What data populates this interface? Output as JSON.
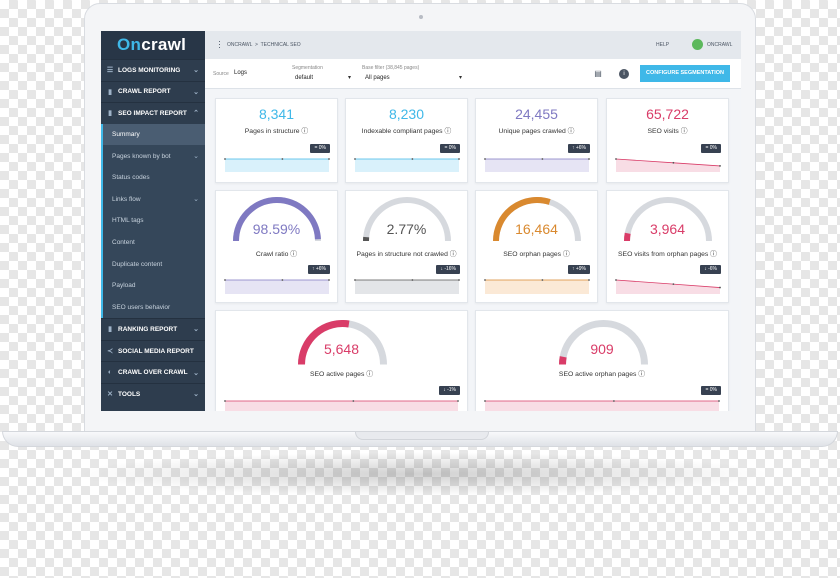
{
  "nav": {
    "logo_part1": "On",
    "logo_part2": "crawl",
    "sections": [
      {
        "label": "LOGS MONITORING",
        "icon": "list-icon"
      },
      {
        "label": "CRAWL REPORT",
        "icon": "bar-chart-icon"
      },
      {
        "label": "SEO IMPACT REPORT",
        "icon": "bar-chart-icon"
      },
      {
        "label": "RANKING REPORT",
        "icon": "bar-chart-icon"
      },
      {
        "label": "SOCIAL MEDIA REPORT",
        "icon": "share-icon"
      },
      {
        "label": "CRAWL OVER CRAWL",
        "icon": "compare-icon"
      },
      {
        "label": "TOOLS",
        "icon": "tools-icon"
      }
    ],
    "subitems": [
      "Summary",
      "Pages known by bot",
      "Status codes",
      "Links flow",
      "HTML tags",
      "Content",
      "Duplicate content",
      "Payload",
      "SEO users behavior"
    ]
  },
  "topbar": {
    "crumb1": "ONCRAWL",
    "crumb_sep": ">",
    "crumb2": "TECHNICAL SEO",
    "help": "HELP",
    "account": "ONCRAWL"
  },
  "filters": {
    "source_label": "Source",
    "source_value": "Logs",
    "segmentation_label": "Segmentation",
    "segmentation_value": "default",
    "base_filter_label": "Base filter (38,845 pages)",
    "base_filter_value": "All pages",
    "configure_button": "CONFIGURE SEGMENTATION"
  },
  "colors": {
    "blue": "#3fb8e8",
    "purple": "#7f79c2",
    "orange": "#d9892f",
    "pink": "#d93c68",
    "gray": "#555555"
  },
  "cards": [
    {
      "value": "8,341",
      "label": "Pages in structure",
      "badge": "= 0%",
      "trend": "flat",
      "color": "#3fb8e8",
      "fill": "#d9f1fb"
    },
    {
      "value": "8,230",
      "label": "Indexable compliant pages",
      "badge": "= 0%",
      "trend": "flat",
      "color": "#3fb8e8",
      "fill": "#d9f1fb"
    },
    {
      "value": "24,455",
      "label": "Unique pages crawled",
      "badge": "↑ +6%",
      "trend": "flat",
      "color": "#7f79c2",
      "fill": "#e6e4f4"
    },
    {
      "value": "65,722",
      "label": "SEO visits",
      "badge": "= 0%",
      "trend": "down",
      "color": "#d93c68",
      "fill": "#f8dde5"
    }
  ],
  "gauges": [
    {
      "value": "98.59%",
      "label": "Crawl ratio",
      "badge": "↑ +6%",
      "fraction": 0.986,
      "color": "#7f79c2",
      "fill": "#e6e4f4",
      "trend": "flat"
    },
    {
      "value": "2.77%",
      "label": "Pages in structure not crawled",
      "badge": "↓ -16%",
      "fraction": 0.028,
      "color": "#555555",
      "fill": "#e3e5e8",
      "trend": "flat"
    },
    {
      "value": "16,464",
      "label": "SEO orphan pages",
      "badge": "↑ +9%",
      "fraction": 0.6,
      "color": "#d9892f",
      "fill": "#fbe9d6",
      "trend": "flat"
    },
    {
      "value": "3,964",
      "label": "SEO visits from orphan pages",
      "badge": "↓ -6%",
      "fraction": 0.06,
      "color": "#d93c68",
      "fill": "#f8dde5",
      "trend": "down"
    }
  ],
  "wide_gauges": [
    {
      "value": "5,648",
      "label": "SEO active pages",
      "badge": "↓ -1%",
      "fraction": 0.55,
      "color": "#d93c68",
      "fill": "#f8dde5"
    },
    {
      "value": "909",
      "label": "SEO active orphan pages",
      "badge": "= 0%",
      "fraction": 0.06,
      "color": "#d93c68",
      "fill": "#f8dde5"
    }
  ]
}
